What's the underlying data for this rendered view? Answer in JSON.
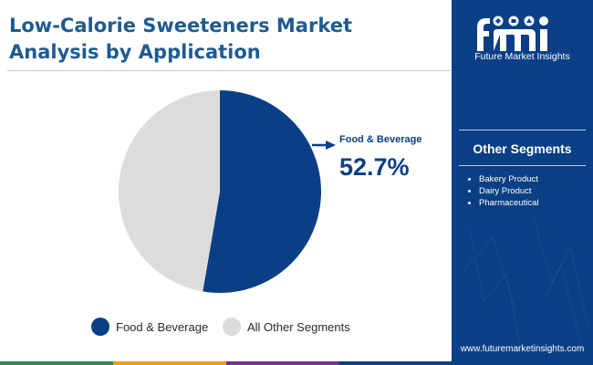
{
  "header": {
    "title_line1": "Low-Calorie Sweeteners Market",
    "title_line2": "Analysis by Application"
  },
  "brand": {
    "logo_letters": "fmi",
    "logo_text": "Future Market Insights",
    "url": "www.futuremarketinsights.com"
  },
  "sidebar": {
    "title": "Other Segments",
    "items": [
      "Bakery Product",
      "Dairy Product",
      "Pharmaceutical"
    ]
  },
  "callout": {
    "label": "Food & Beverage",
    "value": "52.7%"
  },
  "colors": {
    "primary": "#0b3f85",
    "secondary": "#dcdcdc",
    "title": "#1f5b8f",
    "bottom_bar": [
      "#2e8b57",
      "#f39c12",
      "#7b2f8e",
      "#0b3f85"
    ]
  },
  "chart_data": {
    "type": "pie",
    "title": "Low-Calorie Sweeteners Market Analysis by Application",
    "labels": [
      "Food & Beverage",
      "All Other Segments"
    ],
    "values": [
      52.7,
      47.3
    ],
    "unit": "%",
    "legend_position": "bottom",
    "start_angle_deg": 0,
    "direction": "clockwise"
  },
  "legend": {
    "items": [
      {
        "label": "Food & Beverage",
        "color": "#0b3f85"
      },
      {
        "label": "All Other Segments",
        "color": "#dcdcdc"
      }
    ]
  }
}
